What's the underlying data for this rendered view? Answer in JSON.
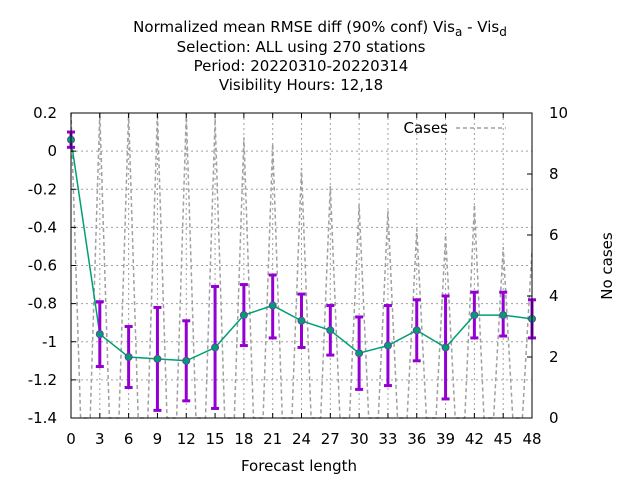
{
  "chart_data": {
    "type": "line",
    "title_lines": [
      "Normalized mean RMSE diff (90% conf) Vis",
      "Selection: ALL using   270 stations",
      "Period: 20220310-20220314",
      "Visibility   Hours:  12,18"
    ],
    "title_sub_a": "a",
    "title_mid": " - Vis",
    "title_sub_d": "d",
    "xlabel": "Forecast length",
    "ylabel": "",
    "y2label": "No cases",
    "xlim": [
      0,
      48
    ],
    "ylim": [
      -1.4,
      0.2
    ],
    "y2lim": [
      0,
      10
    ],
    "xticks": [
      0,
      3,
      6,
      9,
      12,
      15,
      18,
      21,
      24,
      27,
      30,
      33,
      36,
      39,
      42,
      45,
      48
    ],
    "yticks": [
      0.2,
      0,
      -0.2,
      -0.4,
      -0.6,
      -0.8,
      -1,
      -1.2,
      -1.4
    ],
    "y2ticks": [
      0,
      2,
      4,
      6,
      8,
      10
    ],
    "grid": true,
    "legend_position": "top-right",
    "series": [
      {
        "kind": "mean-with-errorbars",
        "x": [
          0,
          3,
          6,
          9,
          12,
          15,
          18,
          21,
          24,
          27,
          30,
          33,
          36,
          39,
          42,
          45,
          48
        ],
        "y": [
          0.06,
          -0.96,
          -1.08,
          -1.09,
          -1.1,
          -1.03,
          -0.86,
          -0.81,
          -0.89,
          -0.94,
          -1.06,
          -1.02,
          -0.94,
          -1.03,
          -0.86,
          -0.86,
          -0.88
        ],
        "ylow": [
          0.02,
          -1.13,
          -1.24,
          -1.36,
          -1.31,
          -1.35,
          -1.02,
          -0.98,
          -1.03,
          -1.07,
          -1.25,
          -1.23,
          -1.1,
          -1.3,
          -0.98,
          -0.97,
          -0.98
        ],
        "yhigh": [
          0.1,
          -0.79,
          -0.92,
          -0.82,
          -0.89,
          -0.71,
          -0.7,
          -0.65,
          -0.75,
          -0.81,
          -0.87,
          -0.81,
          -0.78,
          -0.76,
          -0.74,
          -0.74,
          -0.78
        ],
        "line_color": "#009e73",
        "errorbar_color": "#9400d3"
      },
      {
        "name": "Cases",
        "kind": "cases-dashed",
        "x": [
          0,
          1,
          2,
          3,
          4,
          5,
          6,
          7,
          8,
          9,
          10,
          11,
          12,
          13,
          14,
          15,
          16,
          17,
          18,
          19,
          20,
          21,
          22,
          23,
          24,
          25,
          26,
          27,
          28,
          29,
          30,
          31,
          32,
          33,
          34,
          35,
          36,
          37,
          38,
          39,
          40,
          41,
          42,
          43,
          44,
          45,
          46,
          47,
          48
        ],
        "y": [
          10,
          0,
          0,
          10,
          0,
          0,
          10,
          0,
          0,
          10,
          0,
          0,
          10,
          0,
          0,
          9.8,
          0,
          0,
          9.2,
          0,
          0,
          9.0,
          0,
          0,
          8.2,
          0,
          0,
          7.6,
          0,
          0,
          7.0,
          0,
          0,
          6.8,
          0,
          0,
          6.2,
          0,
          0,
          6.0,
          0,
          0,
          7.0,
          0,
          0,
          5.6,
          0,
          0,
          5.5
        ],
        "color": "#a0a0a0"
      }
    ]
  }
}
